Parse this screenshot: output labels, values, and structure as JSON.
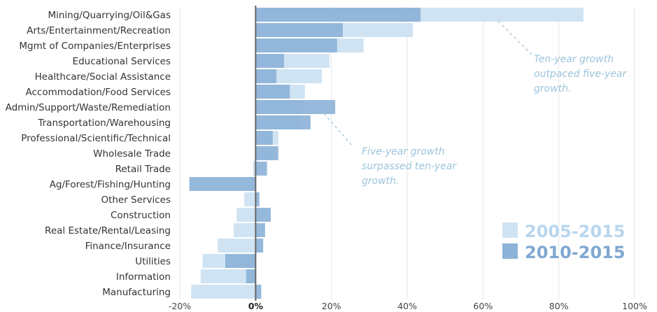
{
  "chart_data": {
    "type": "bar",
    "orientation": "horizontal",
    "title": "",
    "xlabel": "",
    "ylabel": "",
    "categories": [
      "Mining/Quarrying/Oil&Gas",
      "Arts/Entertainment/Recreation",
      "Mgmt of Companies/Enterprises",
      "Educational Services",
      "Healthcare/Social Assistance",
      "Accommodation/Food Services",
      "Admin/Support/Waste/Remediation",
      "Transportation/Warehousing",
      "Professional/Scientific/Technical",
      "Wholesale Trade",
      "Retail Trade",
      "Ag/Forest/Fishing/Hunting",
      "Other Services",
      "Construction",
      "Real Estate/Rental/Leasing",
      "Finance/Insurance",
      "Utilities",
      "Information",
      "Manufacturing"
    ],
    "series": [
      {
        "name": "2005-2015",
        "color": "#cfe3f3",
        "values": [
          86.5,
          41.5,
          28.5,
          19.5,
          17.5,
          13,
          12.5,
          11.5,
          6,
          4.5,
          -0.7,
          -2,
          -3,
          -5,
          -5.8,
          -10,
          -14,
          -14.5,
          -17
        ]
      },
      {
        "name": "2010-2015",
        "color": "#8db3d8",
        "values": [
          43.5,
          23,
          21.5,
          7.5,
          5.5,
          9,
          21,
          14.5,
          4.5,
          6,
          3,
          -17.5,
          1,
          4,
          2.5,
          2,
          -8,
          -2.5,
          1.5
        ]
      }
    ],
    "xlim": [
      -20,
      100
    ],
    "xticks": [
      -20,
      0,
      20,
      40,
      60,
      80,
      100
    ],
    "xtick_labels": [
      "-20%",
      "0%",
      "20%",
      "40%",
      "60%",
      "80%",
      "100%"
    ],
    "grid": "vertical",
    "legend_position": "bottom-right",
    "annotations": [
      {
        "text_lines": [
          "Ten-year growth",
          "outpaced five-year",
          "growth."
        ],
        "target_category": "Mining/Quarrying/Oil&Gas",
        "target_value": 64
      },
      {
        "text_lines": [
          "Five-year growth",
          "surpassed ten-year",
          "growth."
        ],
        "target_category": "Admin/Support/Waste/Remediation",
        "target_value": 18
      }
    ]
  }
}
